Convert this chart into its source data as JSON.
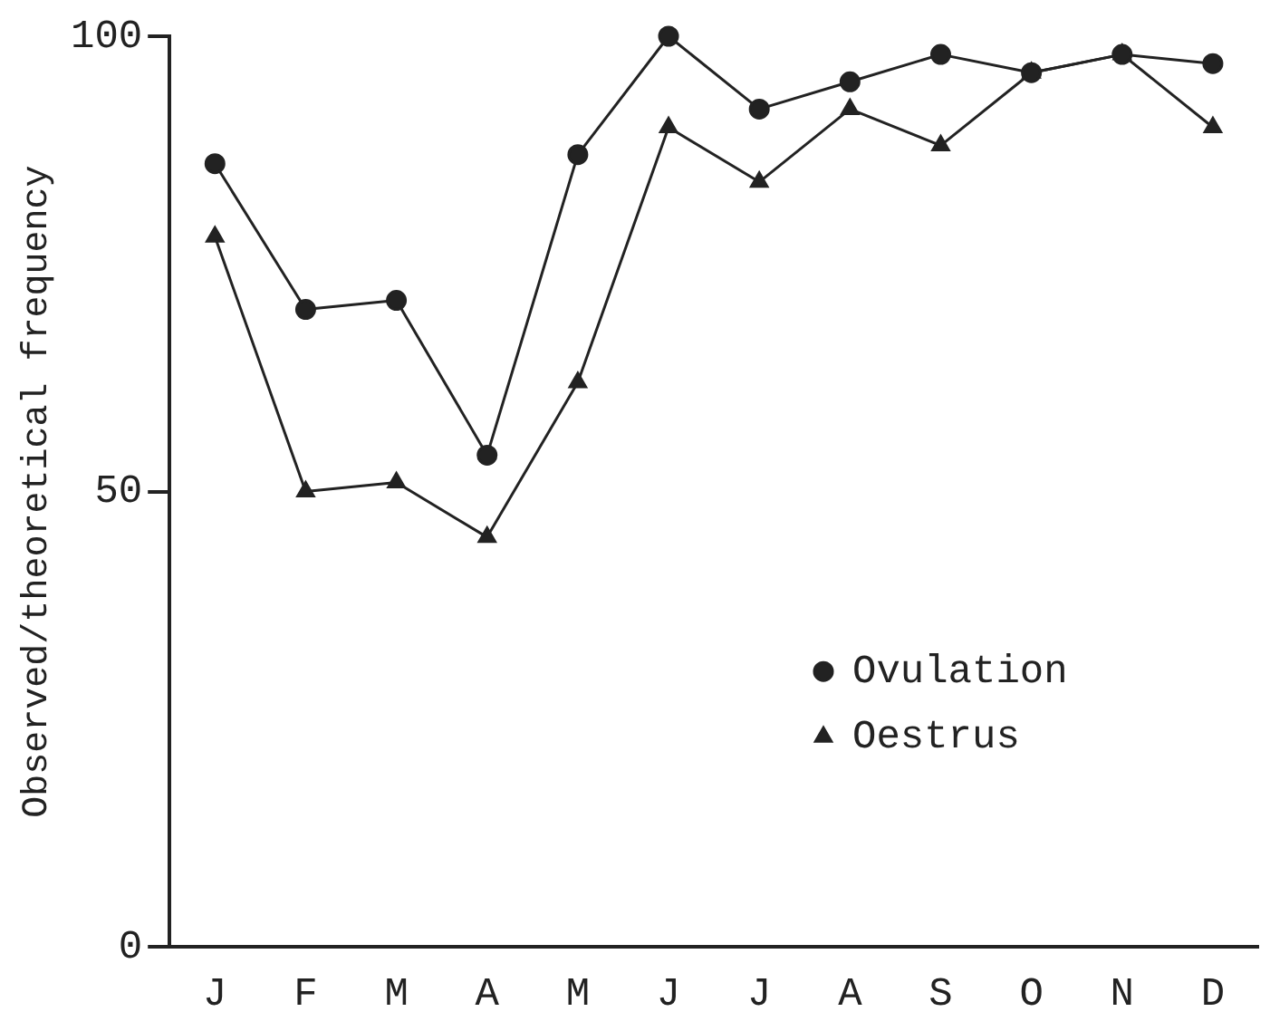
{
  "chart_data": {
    "type": "line",
    "ylabel": "Observed/theoretical frequency",
    "categories": [
      "J",
      "F",
      "M",
      "A",
      "M",
      "J",
      "J",
      "A",
      "S",
      "O",
      "N",
      "D"
    ],
    "series": [
      {
        "name": "Ovulation",
        "color": "#222222",
        "marker": "circle",
        "values": [
          86,
          70,
          71,
          54,
          87,
          100,
          92,
          95,
          98,
          96,
          98,
          97
        ]
      },
      {
        "name": "Oestrus",
        "color": "#222222",
        "marker": "triangle",
        "values": [
          78,
          50,
          51,
          45,
          62,
          90,
          84,
          92,
          88,
          96,
          98,
          90
        ]
      }
    ],
    "ylim": [
      0,
      100
    ],
    "yticks": [
      0,
      50,
      100
    ],
    "grid": false,
    "legend": "bottom right",
    "line_style": "solid"
  }
}
